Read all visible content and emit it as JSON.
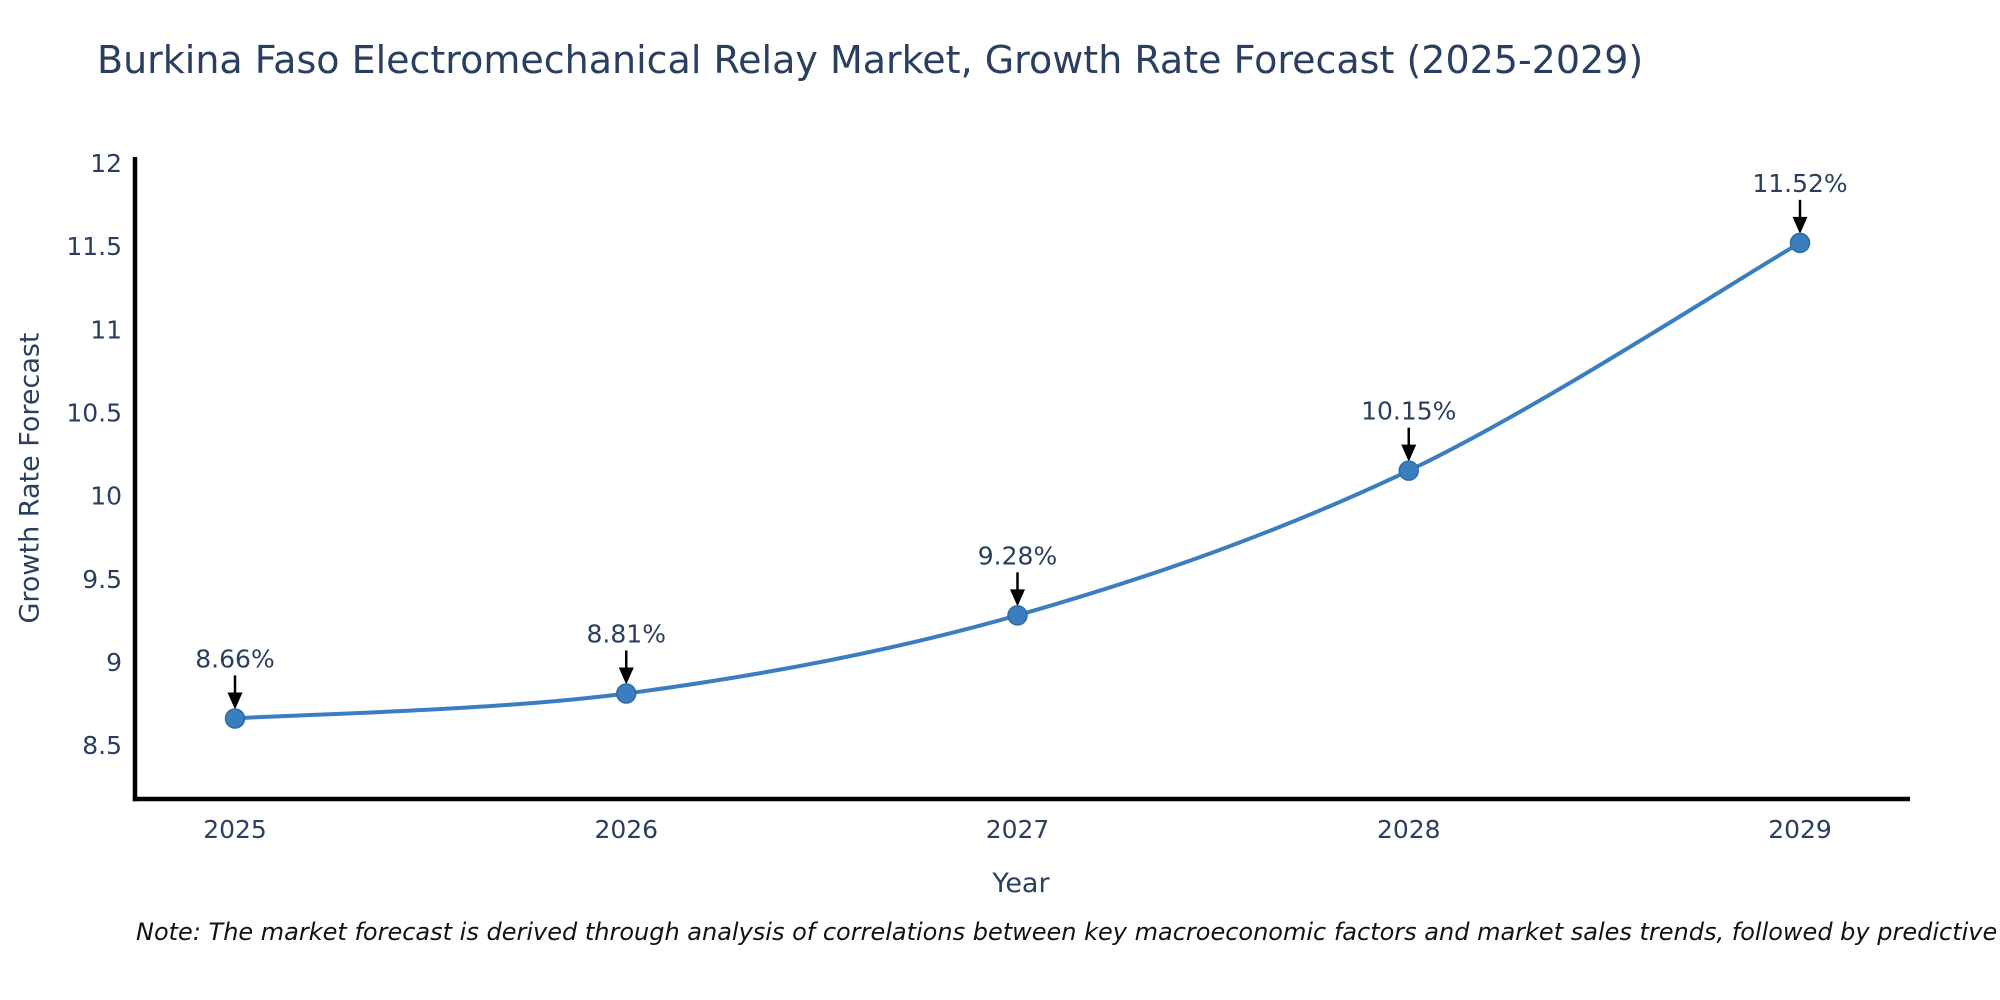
{
  "page": {
    "title": "Burkina Faso Electromechanical Relay Market, Growth Rate Forecast (2025-2029)",
    "footnote": "Note: The market forecast is derived through analysis of correlations between key macroeconomic factors and market sales trends, followed by predictive modeling to project future sal"
  },
  "chart_data": {
    "type": "line",
    "title": "Burkina Faso Electromechanical Relay Market, Growth Rate Forecast (2025-2029)",
    "xlabel": "Year",
    "ylabel": "Growth Rate Forecast",
    "categories": [
      "2025",
      "2026",
      "2027",
      "2028",
      "2029"
    ],
    "series": [
      {
        "name": "Growth Rate Forecast",
        "values": [
          8.66,
          8.81,
          9.28,
          10.15,
          11.52
        ]
      }
    ],
    "point_labels": [
      "8.66%",
      "8.81%",
      "9.28%",
      "10.15%",
      "11.52%"
    ],
    "yticks": [
      8.5,
      9,
      9.5,
      10,
      10.5,
      11,
      11.5,
      12
    ],
    "ylim": [
      8.15,
      12.05
    ],
    "grid": false,
    "legend_position": "none",
    "line_shape": "spline",
    "annotation_arrows": true,
    "colors": {
      "line": "#3a7ebf",
      "marker": "#3a7ebf",
      "marker_edge": "#2e6da4",
      "axis": "#000000",
      "tick_text": "#2a3f5f",
      "annotation_text": "#2a3f5f",
      "annotation_arrow": "#000000",
      "background": "#ffffff"
    }
  }
}
